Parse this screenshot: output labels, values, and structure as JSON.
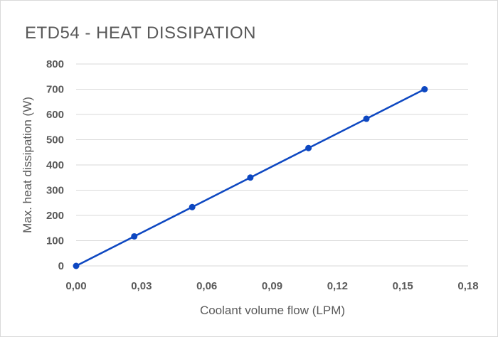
{
  "chart_data": {
    "type": "line",
    "title": "ETD54 - HEAT DISSIPATION",
    "xlabel": "Coolant volume flow (LPM)",
    "ylabel": "Max. heat dissipation (W)",
    "xlim": [
      0,
      0.18
    ],
    "ylim": [
      0,
      800
    ],
    "x_ticks": [
      "0,00",
      "0,03",
      "0,06",
      "0,09",
      "0,12",
      "0,15",
      "0,18"
    ],
    "y_ticks": [
      "0",
      "100",
      "200",
      "300",
      "400",
      "500",
      "600",
      "700",
      "800"
    ],
    "grid": "horizontal",
    "series": [
      {
        "x": [
          0,
          0.0267,
          0.0533,
          0.08,
          0.1067,
          0.1333,
          0.16
        ],
        "y": [
          0,
          117,
          233,
          350,
          467,
          583,
          700
        ],
        "color": "#0d47c1",
        "marker": "circle"
      }
    ]
  }
}
